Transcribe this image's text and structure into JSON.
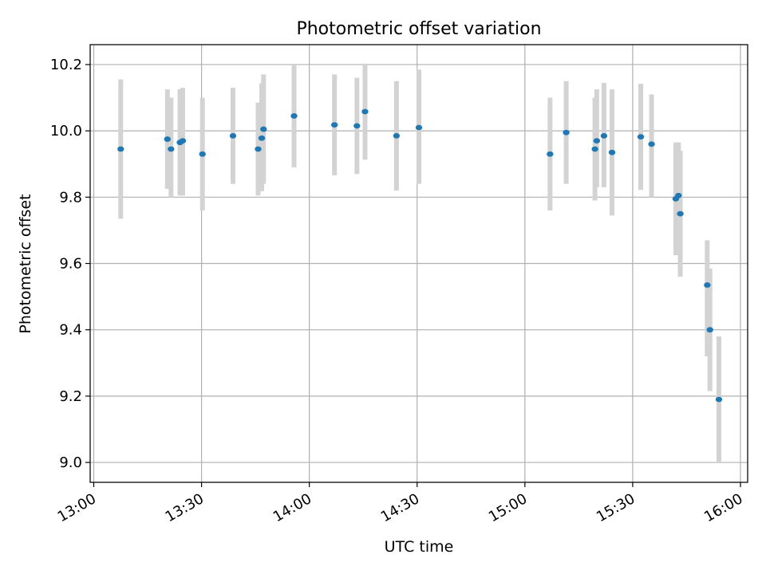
{
  "chart_data": {
    "type": "scatter",
    "title": "Photometric offset variation",
    "xlabel": "UTC time",
    "ylabel": "Photometric offset",
    "x_ticks": [
      "13:00",
      "13:30",
      "14:00",
      "14:30",
      "15:00",
      "15:30",
      "16:00"
    ],
    "y_ticks": [
      "9.0",
      "9.2",
      "9.4",
      "9.6",
      "9.8",
      "10.0",
      "10.2"
    ],
    "xlim": [
      "12:59",
      "16:02"
    ],
    "ylim": [
      8.94,
      10.26
    ],
    "grid": true,
    "marker_color": "#1f77b4",
    "errorbar_color": "#d3d3d3",
    "series": [
      {
        "x": [
          "13:07:30",
          "13:20:30",
          "13:21:30",
          "13:24:00",
          "13:24:45",
          "13:30:15",
          "13:38:45",
          "13:45:45",
          "13:46:45",
          "13:47:15",
          "13:55:45",
          "14:07:00",
          "14:13:15",
          "14:15:30",
          "14:24:15",
          "14:30:30",
          "15:07:00",
          "15:11:30",
          "15:19:30",
          "15:20:00",
          "15:22:00",
          "15:24:15",
          "15:32:15",
          "15:35:15",
          "15:42:00",
          "15:42:45",
          "15:43:15",
          "15:50:45",
          "15:51:30",
          "15:54:00"
        ],
        "y": [
          9.945,
          9.975,
          9.945,
          9.965,
          9.97,
          9.93,
          9.985,
          9.945,
          9.978,
          10.005,
          10.045,
          10.018,
          10.015,
          10.058,
          9.985,
          10.01,
          9.93,
          9.995,
          9.945,
          9.97,
          9.985,
          9.935,
          9.982,
          9.96,
          9.795,
          9.805,
          9.75,
          9.535,
          9.4,
          9.19
        ],
        "yerr_low": [
          0.21,
          0.15,
          0.145,
          0.16,
          0.165,
          0.17,
          0.145,
          0.14,
          0.16,
          0.165,
          0.155,
          0.152,
          0.145,
          0.145,
          0.165,
          0.17,
          0.17,
          0.155,
          0.155,
          0.14,
          0.155,
          0.19,
          0.16,
          0.16,
          0.17,
          0.16,
          0.19,
          0.215,
          0.185,
          0.19
        ],
        "yerr_high": [
          0.21,
          0.15,
          0.155,
          0.16,
          0.16,
          0.17,
          0.145,
          0.14,
          0.165,
          0.165,
          0.155,
          0.152,
          0.145,
          0.145,
          0.165,
          0.175,
          0.17,
          0.155,
          0.155,
          0.155,
          0.16,
          0.19,
          0.16,
          0.15,
          0.17,
          0.16,
          0.19,
          0.135,
          0.185,
          0.19
        ]
      }
    ]
  }
}
